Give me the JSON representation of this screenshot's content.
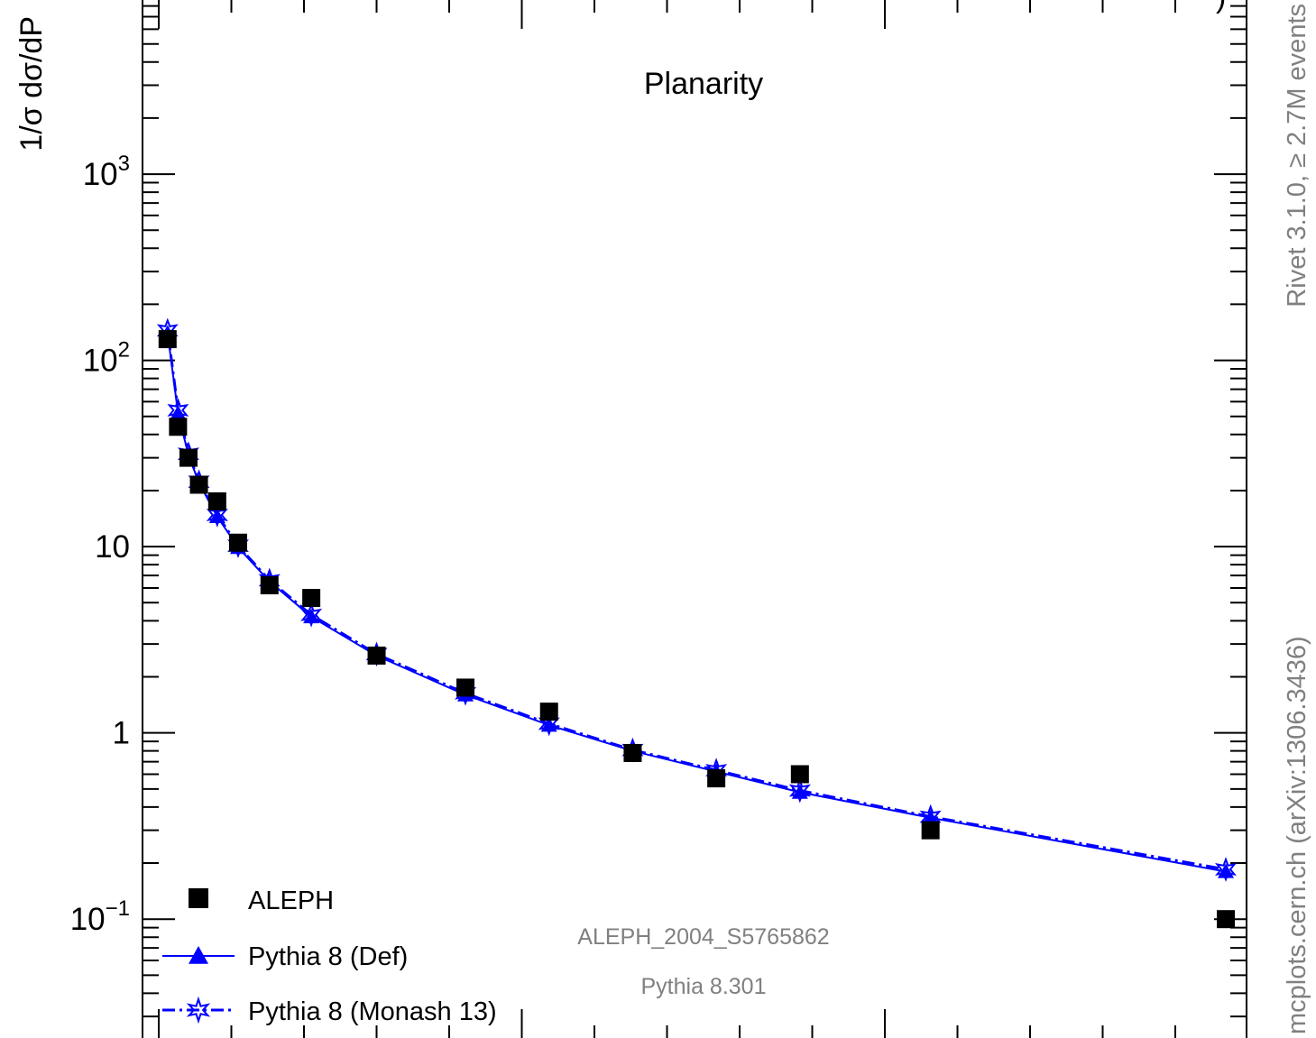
{
  "chart_data": {
    "type": "line",
    "title": "Planarity",
    "top_title_fragment": ")",
    "ylabel": "1/σ  dσ/dP",
    "xlabel": "",
    "yscale": "log",
    "xlim": [
      0.0,
      0.5
    ],
    "ylim": [
      0.022,
      9000
    ],
    "y_ticks": [
      {
        "value": 0.1,
        "base": "10",
        "exp": "−1"
      },
      {
        "value": 1,
        "base": "1",
        "exp": ""
      },
      {
        "value": 10,
        "base": "10",
        "exp": ""
      },
      {
        "value": 100,
        "base": "10",
        "exp": "2"
      },
      {
        "value": 1000,
        "base": "10",
        "exp": "3"
      }
    ],
    "legend_placement": "bottom-left",
    "legend": [
      {
        "label": "ALEPH",
        "style": "square-marker"
      },
      {
        "label": "Pythia 8 (Def)",
        "style": "solid-triangle"
      },
      {
        "label": "Pythia 8 (Monash 13)",
        "style": "dashdot-star"
      }
    ],
    "annotations": {
      "analysis": "ALEPH_2004_S5765862",
      "generator": "Pythia 8.301",
      "rivet": "Rivet 3.1.0, ≥ 2.7M events",
      "source": "mcplots.cern.ch (arXiv:1306.3436)"
    },
    "series": [
      {
        "name": "ALEPH",
        "x": [
          0.002,
          0.006,
          0.01,
          0.014,
          0.021,
          0.029,
          0.041,
          0.057,
          0.082,
          0.116,
          0.148,
          0.18,
          0.212,
          0.244,
          0.294,
          0.407
        ],
        "values": [
          130,
          44,
          30,
          21.5,
          17.5,
          10.5,
          6.2,
          5.3,
          2.6,
          1.75,
          1.3,
          0.78,
          0.57,
          0.6,
          0.3,
          0.1
        ]
      },
      {
        "name": "Pythia 8 (Def)",
        "x": [
          0.002,
          0.006,
          0.01,
          0.014,
          0.021,
          0.029,
          0.041,
          0.057,
          0.082,
          0.116,
          0.148,
          0.18,
          0.212,
          0.244,
          0.294,
          0.407
        ],
        "values": [
          140,
          52,
          31,
          22,
          14.5,
          9.9,
          6.5,
          4.2,
          2.6,
          1.6,
          1.1,
          0.8,
          0.62,
          0.48,
          0.35,
          0.18
        ]
      },
      {
        "name": "Pythia 8 (Monash 13)",
        "x": [
          0.002,
          0.006,
          0.01,
          0.014,
          0.021,
          0.029,
          0.041,
          0.057,
          0.082,
          0.116,
          0.148,
          0.18,
          0.212,
          0.244,
          0.294,
          0.407
        ],
        "values": [
          145,
          54,
          31.5,
          22.3,
          14.8,
          10.1,
          6.6,
          4.3,
          2.65,
          1.63,
          1.12,
          0.81,
          0.63,
          0.49,
          0.355,
          0.185
        ]
      }
    ],
    "colors": {
      "data": "#000000",
      "mc": "#0000ff",
      "frame": "#000000",
      "annotation": "#808080"
    }
  }
}
